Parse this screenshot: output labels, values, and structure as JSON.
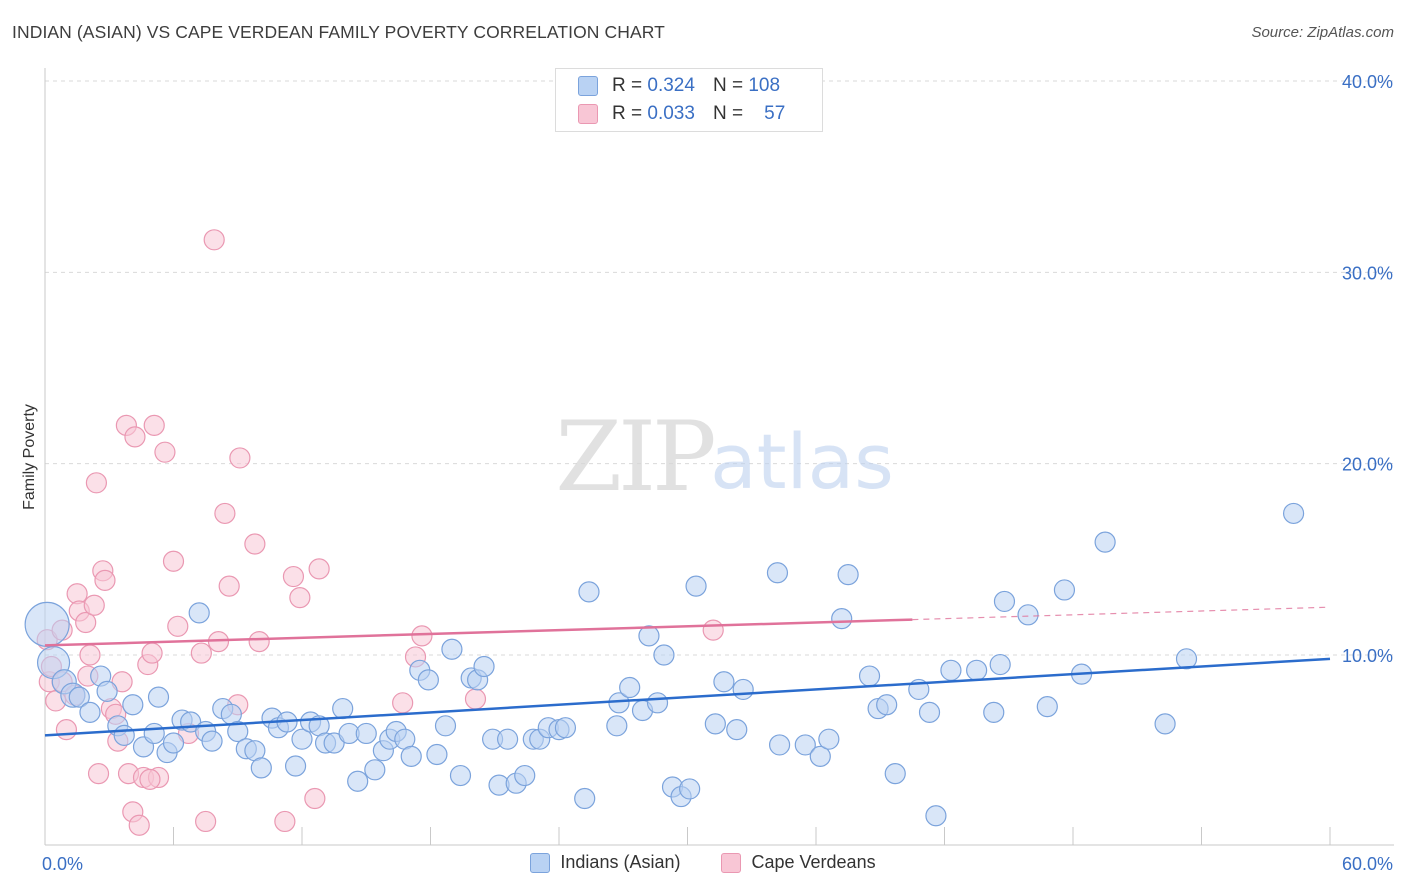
{
  "title": "INDIAN (ASIAN) VS CAPE VERDEAN FAMILY POVERTY CORRELATION CHART",
  "source": "Source: ZipAtlas.com",
  "watermark": {
    "zip": "ZIP",
    "atlas": "atlas"
  },
  "colors": {
    "blue_fill": "#b9d2f3",
    "blue_stroke": "#7ba3dc",
    "blue_line": "#2b6ccc",
    "pink_fill": "#f8c6d5",
    "pink_stroke": "#ea98b2",
    "pink_line": "#e0729a",
    "grid": "#dadada",
    "tick_label": "#3a6fc4"
  },
  "legend_top": {
    "rows": [
      {
        "series": "Indians (Asian)",
        "r_label": "R =",
        "r_value": "0.324",
        "n_label": "N =",
        "n_value": "108"
      },
      {
        "series": "Cape Verdeans",
        "r_label": "R =",
        "r_value": "0.033",
        "n_label": "N =",
        "n_value": "57"
      }
    ]
  },
  "chart_data": {
    "type": "scatter",
    "title": "INDIAN (ASIAN) VS CAPE VERDEAN FAMILY POVERTY CORRELATION CHART",
    "xlabel": "",
    "ylabel": "Family Poverty",
    "xlim": [
      0,
      60
    ],
    "ylim": [
      0,
      42
    ],
    "x_tick_labels": [
      {
        "value": 0,
        "label": "0.0%"
      },
      {
        "value": 60,
        "label": "60.0%"
      }
    ],
    "y_ticks": [
      {
        "value": 10,
        "label": "10.0%"
      },
      {
        "value": 20,
        "label": "20.0%"
      },
      {
        "value": 30,
        "label": "30.0%"
      },
      {
        "value": 40,
        "label": "40.0%"
      }
    ],
    "x_minor_ticks": [
      0,
      6,
      12,
      18,
      24,
      30,
      36,
      42,
      48,
      54,
      60
    ],
    "grid": "horizontal dashed",
    "series": [
      {
        "name": "Indians (Asian)",
        "color": "blue",
        "trend": {
          "x": [
            0,
            60
          ],
          "y": [
            5.8,
            9.8
          ],
          "dashed_from": null
        },
        "points": [
          {
            "x": 0.1,
            "y": 11.6,
            "big": 3
          },
          {
            "x": 0.4,
            "y": 9.6,
            "big": 2
          },
          {
            "x": 0.9,
            "y": 8.6,
            "big": 1
          },
          {
            "x": 1.3,
            "y": 7.9,
            "big": 1
          },
          {
            "x": 1.6,
            "y": 7.8
          },
          {
            "x": 2.1,
            "y": 7.0
          },
          {
            "x": 2.6,
            "y": 8.9
          },
          {
            "x": 2.9,
            "y": 8.1
          },
          {
            "x": 3.4,
            "y": 6.3
          },
          {
            "x": 3.7,
            "y": 5.8
          },
          {
            "x": 4.1,
            "y": 7.4
          },
          {
            "x": 4.6,
            "y": 5.2
          },
          {
            "x": 5.1,
            "y": 5.9
          },
          {
            "x": 5.3,
            "y": 7.8
          },
          {
            "x": 5.7,
            "y": 4.9
          },
          {
            "x": 6.0,
            "y": 5.4
          },
          {
            "x": 6.4,
            "y": 6.6
          },
          {
            "x": 6.8,
            "y": 6.5
          },
          {
            "x": 7.2,
            "y": 12.2
          },
          {
            "x": 7.5,
            "y": 6.0
          },
          {
            "x": 7.8,
            "y": 5.5
          },
          {
            "x": 8.3,
            "y": 7.2
          },
          {
            "x": 8.7,
            "y": 6.9
          },
          {
            "x": 9.0,
            "y": 6.0
          },
          {
            "x": 9.4,
            "y": 5.1
          },
          {
            "x": 9.8,
            "y": 5.0
          },
          {
            "x": 10.1,
            "y": 4.1
          },
          {
            "x": 10.6,
            "y": 6.7
          },
          {
            "x": 10.9,
            "y": 6.2
          },
          {
            "x": 11.3,
            "y": 6.5
          },
          {
            "x": 11.7,
            "y": 4.2
          },
          {
            "x": 12.0,
            "y": 5.6
          },
          {
            "x": 12.4,
            "y": 6.5
          },
          {
            "x": 12.8,
            "y": 6.3
          },
          {
            "x": 13.1,
            "y": 5.4
          },
          {
            "x": 13.5,
            "y": 5.4
          },
          {
            "x": 13.9,
            "y": 7.2
          },
          {
            "x": 14.2,
            "y": 5.9
          },
          {
            "x": 14.6,
            "y": 3.4
          },
          {
            "x": 15.0,
            "y": 5.9
          },
          {
            "x": 15.4,
            "y": 4.0
          },
          {
            "x": 15.8,
            "y": 5.0
          },
          {
            "x": 16.1,
            "y": 5.6
          },
          {
            "x": 16.4,
            "y": 6.0
          },
          {
            "x": 16.8,
            "y": 5.6
          },
          {
            "x": 17.1,
            "y": 4.7
          },
          {
            "x": 17.5,
            "y": 9.2
          },
          {
            "x": 17.9,
            "y": 8.7
          },
          {
            "x": 18.3,
            "y": 4.8
          },
          {
            "x": 18.7,
            "y": 6.3
          },
          {
            "x": 19.0,
            "y": 10.3
          },
          {
            "x": 19.4,
            "y": 3.7
          },
          {
            "x": 19.9,
            "y": 8.8
          },
          {
            "x": 20.2,
            "y": 8.7
          },
          {
            "x": 20.5,
            "y": 9.4
          },
          {
            "x": 20.9,
            "y": 5.6
          },
          {
            "x": 21.2,
            "y": 3.2
          },
          {
            "x": 21.6,
            "y": 5.6
          },
          {
            "x": 22.0,
            "y": 3.3
          },
          {
            "x": 22.4,
            "y": 3.7
          },
          {
            "x": 22.8,
            "y": 5.6
          },
          {
            "x": 23.1,
            "y": 5.6
          },
          {
            "x": 23.5,
            "y": 6.2
          },
          {
            "x": 24.0,
            "y": 6.1
          },
          {
            "x": 24.3,
            "y": 6.2
          },
          {
            "x": 25.2,
            "y": 2.5
          },
          {
            "x": 25.4,
            "y": 13.3
          },
          {
            "x": 26.7,
            "y": 6.3
          },
          {
            "x": 26.8,
            "y": 7.5
          },
          {
            "x": 27.3,
            "y": 8.3
          },
          {
            "x": 27.9,
            "y": 7.1
          },
          {
            "x": 28.2,
            "y": 11.0
          },
          {
            "x": 28.6,
            "y": 7.5
          },
          {
            "x": 28.9,
            "y": 10.0
          },
          {
            "x": 29.3,
            "y": 3.1
          },
          {
            "x": 29.7,
            "y": 2.6
          },
          {
            "x": 30.1,
            "y": 3.0
          },
          {
            "x": 30.4,
            "y": 13.6
          },
          {
            "x": 31.3,
            "y": 6.4
          },
          {
            "x": 31.7,
            "y": 8.6
          },
          {
            "x": 32.3,
            "y": 6.1
          },
          {
            "x": 32.6,
            "y": 8.2
          },
          {
            "x": 34.2,
            "y": 14.3
          },
          {
            "x": 34.3,
            "y": 5.3
          },
          {
            "x": 35.5,
            "y": 5.3
          },
          {
            "x": 36.2,
            "y": 4.7
          },
          {
            "x": 36.6,
            "y": 5.6
          },
          {
            "x": 37.2,
            "y": 11.9
          },
          {
            "x": 37.5,
            "y": 14.2
          },
          {
            "x": 38.5,
            "y": 8.9
          },
          {
            "x": 38.9,
            "y": 7.2
          },
          {
            "x": 39.3,
            "y": 7.4
          },
          {
            "x": 39.7,
            "y": 3.8
          },
          {
            "x": 40.8,
            "y": 8.2
          },
          {
            "x": 41.3,
            "y": 7.0
          },
          {
            "x": 41.6,
            "y": 1.6
          },
          {
            "x": 42.3,
            "y": 9.2
          },
          {
            "x": 43.5,
            "y": 9.2
          },
          {
            "x": 44.3,
            "y": 7.0
          },
          {
            "x": 44.6,
            "y": 9.5
          },
          {
            "x": 44.8,
            "y": 12.8
          },
          {
            "x": 45.9,
            "y": 12.1
          },
          {
            "x": 46.8,
            "y": 7.3
          },
          {
            "x": 47.6,
            "y": 13.4
          },
          {
            "x": 48.4,
            "y": 9.0
          },
          {
            "x": 49.5,
            "y": 15.9
          },
          {
            "x": 52.3,
            "y": 6.4
          },
          {
            "x": 53.3,
            "y": 9.8
          },
          {
            "x": 58.3,
            "y": 17.4
          }
        ]
      },
      {
        "name": "Cape Verdeans",
        "color": "pink",
        "trend": {
          "x": [
            0,
            60
          ],
          "y": [
            10.5,
            12.5
          ],
          "dashed_from": 40.5
        },
        "points": [
          {
            "x": 0.1,
            "y": 10.8
          },
          {
            "x": 0.2,
            "y": 8.6
          },
          {
            "x": 0.3,
            "y": 9.4
          },
          {
            "x": 0.5,
            "y": 7.6
          },
          {
            "x": 0.8,
            "y": 8.6
          },
          {
            "x": 0.8,
            "y": 11.3
          },
          {
            "x": 1.0,
            "y": 6.1
          },
          {
            "x": 1.4,
            "y": 7.9
          },
          {
            "x": 1.5,
            "y": 13.2
          },
          {
            "x": 1.6,
            "y": 12.3
          },
          {
            "x": 1.9,
            "y": 11.7
          },
          {
            "x": 2.0,
            "y": 8.9
          },
          {
            "x": 2.1,
            "y": 10.0
          },
          {
            "x": 2.3,
            "y": 12.6
          },
          {
            "x": 2.4,
            "y": 19.0
          },
          {
            "x": 2.5,
            "y": 3.8
          },
          {
            "x": 2.7,
            "y": 14.4
          },
          {
            "x": 2.8,
            "y": 13.9
          },
          {
            "x": 3.1,
            "y": 7.2
          },
          {
            "x": 3.3,
            "y": 6.9
          },
          {
            "x": 3.4,
            "y": 5.5
          },
          {
            "x": 3.6,
            "y": 8.6
          },
          {
            "x": 3.8,
            "y": 22.0
          },
          {
            "x": 3.9,
            "y": 3.8
          },
          {
            "x": 4.1,
            "y": 1.8
          },
          {
            "x": 4.2,
            "y": 21.4
          },
          {
            "x": 4.4,
            "y": 1.1
          },
          {
            "x": 4.6,
            "y": 3.6
          },
          {
            "x": 4.8,
            "y": 9.5
          },
          {
            "x": 5.0,
            "y": 10.1
          },
          {
            "x": 5.1,
            "y": 22.0
          },
          {
            "x": 5.3,
            "y": 3.6
          },
          {
            "x": 5.6,
            "y": 20.6
          },
          {
            "x": 6.0,
            "y": 14.9
          },
          {
            "x": 6.2,
            "y": 11.5
          },
          {
            "x": 6.7,
            "y": 5.9
          },
          {
            "x": 7.3,
            "y": 10.1
          },
          {
            "x": 7.5,
            "y": 1.3
          },
          {
            "x": 7.9,
            "y": 31.7
          },
          {
            "x": 8.1,
            "y": 10.7
          },
          {
            "x": 8.4,
            "y": 17.4
          },
          {
            "x": 8.6,
            "y": 13.6
          },
          {
            "x": 9.0,
            "y": 7.4
          },
          {
            "x": 9.1,
            "y": 20.3
          },
          {
            "x": 9.8,
            "y": 15.8
          },
          {
            "x": 10.0,
            "y": 10.7
          },
          {
            "x": 11.2,
            "y": 1.3
          },
          {
            "x": 11.6,
            "y": 14.1
          },
          {
            "x": 11.9,
            "y": 13.0
          },
          {
            "x": 12.6,
            "y": 2.5
          },
          {
            "x": 12.8,
            "y": 14.5
          },
          {
            "x": 16.7,
            "y": 7.5
          },
          {
            "x": 17.3,
            "y": 9.9
          },
          {
            "x": 17.6,
            "y": 11.0
          },
          {
            "x": 20.1,
            "y": 7.7
          },
          {
            "x": 31.2,
            "y": 11.3
          },
          {
            "x": 4.9,
            "y": 3.5
          }
        ]
      }
    ]
  },
  "legend_bottom": [
    {
      "label": "Indians (Asian)",
      "color": "blue"
    },
    {
      "label": "Cape Verdeans",
      "color": "pink"
    }
  ]
}
